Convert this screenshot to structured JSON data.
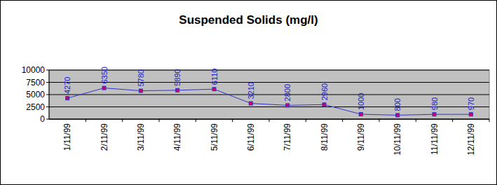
{
  "chart_data": {
    "type": "line",
    "title": "Suspended Solids (mg/l)",
    "categories": [
      "1/11/99",
      "2/11/99",
      "3/11/99",
      "4/11/99",
      "5/11/99",
      "6/11/99",
      "7/11/99",
      "8/11/99",
      "9/11/99",
      "10/11/99",
      "11/11/99",
      "12/11/99"
    ],
    "values": [
      4270,
      6350,
      5780,
      5890,
      6110,
      3210,
      2800,
      2960,
      1000,
      800,
      980,
      970
    ],
    "color": "#3333cc",
    "marker": "square",
    "ylim": [
      0,
      10000
    ],
    "yticks": [
      0,
      2500,
      5000,
      7500,
      10000
    ],
    "grid": true,
    "data_labels": true
  }
}
